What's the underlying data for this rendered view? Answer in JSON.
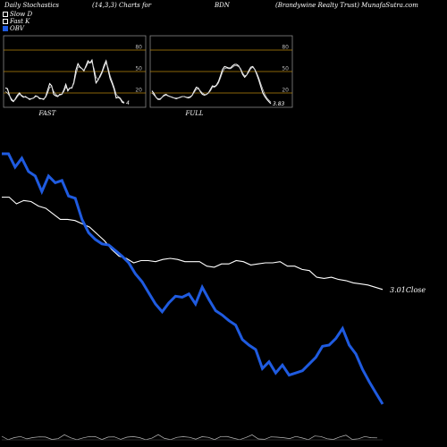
{
  "header": {
    "title": "Daily Stochastics",
    "params": "(14,3,3) Charts for",
    "ticker": "BDN",
    "company": "(Brandywine Realty Trust) MunafaSutra.com"
  },
  "legend": [
    {
      "label": "Slow D",
      "color": "#ffffff"
    },
    {
      "label": "Fast K",
      "color": "#ffffff"
    },
    {
      "label": "OBV",
      "color": "#1f5be0"
    }
  ],
  "chart_data": [
    {
      "type": "line",
      "label": "FAST",
      "ylim": [
        0,
        100
      ],
      "ticks": [
        "80",
        "50",
        "20"
      ],
      "tick_values": [
        80,
        50,
        20
      ],
      "last_value_label": "4",
      "series": [
        {
          "values": [
            27,
            26,
            17,
            10,
            8,
            12,
            17,
            20,
            16,
            14,
            15,
            13,
            11,
            12,
            13,
            16,
            15,
            12,
            12,
            11,
            15,
            24,
            33,
            30,
            18,
            16,
            15,
            18,
            18,
            24,
            32,
            23,
            27,
            27,
            35,
            52,
            61,
            56,
            54,
            51,
            58,
            65,
            62,
            66,
            50,
            34,
            38,
            44,
            50,
            59,
            65,
            52,
            40,
            33,
            25,
            13,
            14,
            12,
            7,
            6
          ]
        },
        {
          "values": [
            22,
            20,
            16,
            12,
            9,
            11,
            15,
            18,
            17,
            15,
            14,
            13,
            12,
            12,
            13,
            15,
            15,
            13,
            12,
            12,
            14,
            20,
            28,
            29,
            22,
            18,
            16,
            17,
            18,
            22,
            28,
            25,
            26,
            28,
            33,
            46,
            56,
            57,
            54,
            52,
            56,
            62,
            62,
            63,
            54,
            42,
            39,
            42,
            48,
            56,
            62,
            55,
            44,
            36,
            28,
            18,
            15,
            13,
            9,
            7
          ]
        }
      ]
    },
    {
      "type": "line",
      "label": "FULL",
      "ylim": [
        0,
        100
      ],
      "ticks": [
        "80",
        "50",
        "20"
      ],
      "tick_values": [
        80,
        50,
        20
      ],
      "last_value_label": "3.83",
      "series": [
        {
          "values": [
            23,
            19,
            14,
            11,
            11,
            14,
            17,
            18,
            16,
            15,
            14,
            13,
            12,
            13,
            14,
            15,
            15,
            14,
            13,
            14,
            17,
            23,
            28,
            27,
            22,
            18,
            17,
            18,
            20,
            25,
            30,
            29,
            31,
            36,
            44,
            53,
            57,
            56,
            55,
            55,
            58,
            60,
            60,
            58,
            53,
            46,
            42,
            45,
            51,
            56,
            57,
            53,
            46,
            38,
            29,
            20,
            15,
            11,
            8,
            5
          ]
        },
        {
          "values": [
            20,
            17,
            14,
            12,
            12,
            14,
            16,
            17,
            16,
            15,
            14,
            13,
            13,
            13,
            14,
            15,
            15,
            14,
            14,
            15,
            17,
            21,
            25,
            26,
            23,
            20,
            18,
            18,
            20,
            23,
            28,
            28,
            30,
            34,
            41,
            49,
            54,
            55,
            54,
            54,
            56,
            58,
            58,
            57,
            54,
            48,
            44,
            45,
            49,
            54,
            56,
            53,
            48,
            41,
            33,
            25,
            18,
            13,
            10,
            7
          ]
        }
      ]
    },
    {
      "type": "line",
      "series": [
        {
          "name": "OBV",
          "values": [
            100,
            100,
            88,
            96,
            84,
            80,
            66,
            80,
            74,
            76,
            62,
            60,
            41,
            29,
            23,
            19,
            18,
            13,
            8,
            2,
            -8,
            -15,
            -25,
            -35,
            -42,
            -34,
            -28,
            -29,
            -26,
            -35,
            -20,
            -31,
            -41,
            -45,
            -50,
            -54,
            -67,
            -72,
            -76,
            -93,
            -87,
            -97,
            -90,
            -99,
            -97,
            -95,
            -89,
            -83,
            -73,
            -72,
            -66,
            -57,
            -72,
            -80,
            -94,
            -105,
            -115,
            -125
          ]
        },
        {
          "name": "Close",
          "values": [
            61,
            61,
            55,
            58,
            57,
            53,
            51,
            46,
            41,
            41,
            40,
            37,
            34,
            28,
            22,
            14,
            8,
            6,
            2,
            4,
            4,
            3,
            5,
            6,
            5,
            3,
            3,
            3,
            -1,
            -2,
            1,
            1,
            4,
            3,
            0,
            1,
            2,
            2,
            3,
            -1,
            -1,
            -4,
            -5,
            -11,
            -12,
            -11,
            -13,
            -14,
            -16,
            -17,
            -18,
            -20,
            -22
          ]
        }
      ],
      "last_close_label": "3.01",
      "close_label": "Close"
    }
  ]
}
